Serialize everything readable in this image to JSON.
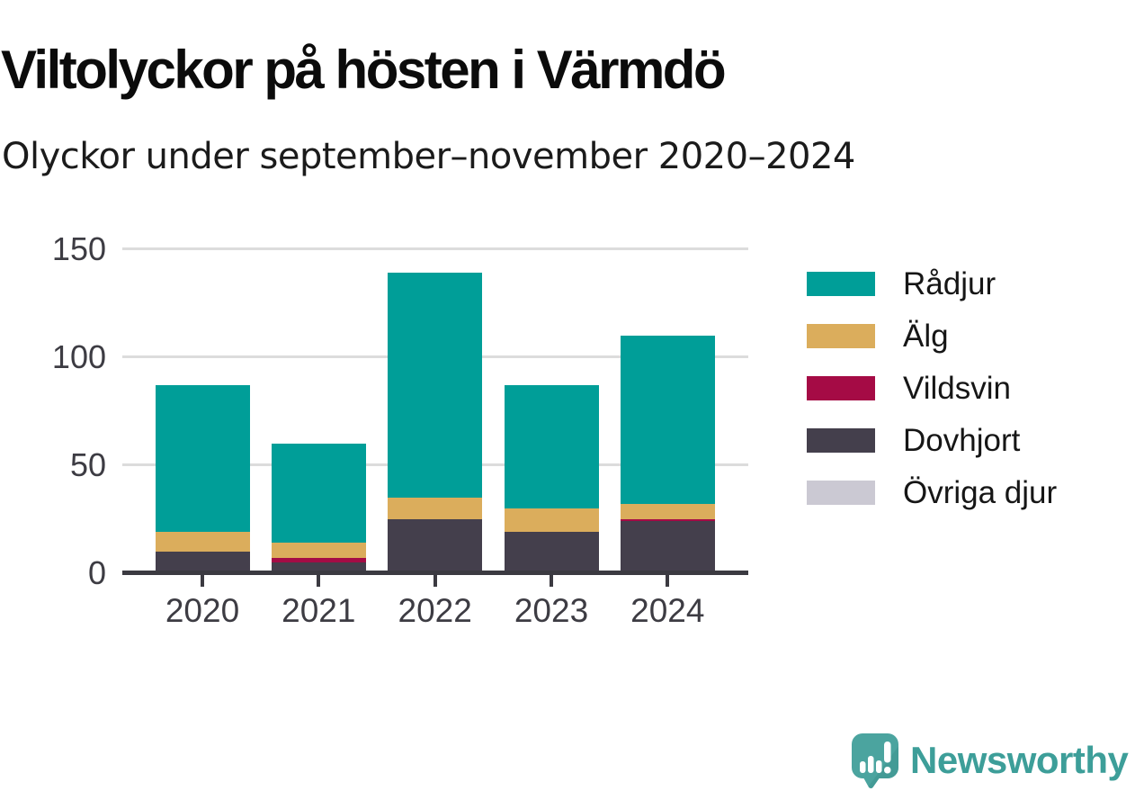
{
  "header": {
    "title": "Viltolyckor på hösten i Värmdö",
    "subtitle": "Olyckor under september–november 2020–2024"
  },
  "chart_data": {
    "type": "bar",
    "stacked": true,
    "title": "Viltolyckor på hösten i Värmdö",
    "subtitle": "Olyckor under september–november 2020–2024",
    "categories": [
      "2020",
      "2021",
      "2022",
      "2023",
      "2024"
    ],
    "series": [
      {
        "name": "Rådjur",
        "color": "#009e98",
        "values": [
          68,
          46,
          104,
          57,
          78
        ]
      },
      {
        "name": "Älg",
        "color": "#dbad5c",
        "values": [
          9,
          7,
          10,
          11,
          7
        ]
      },
      {
        "name": "Vildsvin",
        "color": "#a50b45",
        "values": [
          0,
          2,
          0,
          0,
          1
        ]
      },
      {
        "name": "Dovhjort",
        "color": "#443f4c",
        "values": [
          10,
          5,
          25,
          19,
          24
        ]
      },
      {
        "name": "Övriga djur",
        "color": "#cbc9d3",
        "values": [
          0,
          0,
          0,
          0,
          0
        ]
      }
    ],
    "stack_order_bottom_to_top": [
      "Övriga djur",
      "Dovhjort",
      "Vildsvin",
      "Älg",
      "Rådjur"
    ],
    "totals": [
      87,
      60,
      139,
      87,
      110
    ],
    "xlabel": "",
    "ylabel": "",
    "ylim": [
      0,
      150
    ],
    "yticks": [
      0,
      50,
      100,
      150
    ],
    "grid": "horizontal",
    "legend_position": "right"
  },
  "colors": {
    "background": "#ffffff",
    "gridline": "#dcdcdc",
    "axis": "#3b3a41",
    "tick_label": "#3d3c43",
    "title_text": "#0b0b0b",
    "brand_teal": "#3d9e99",
    "logo_bubble": "#4ba49f",
    "logo_bubble_shade": "#3e938e"
  },
  "footer": {
    "brand": "Newsworthy"
  },
  "icons": {
    "logo": "newsworthy-speech-bubble-barchart-icon"
  }
}
